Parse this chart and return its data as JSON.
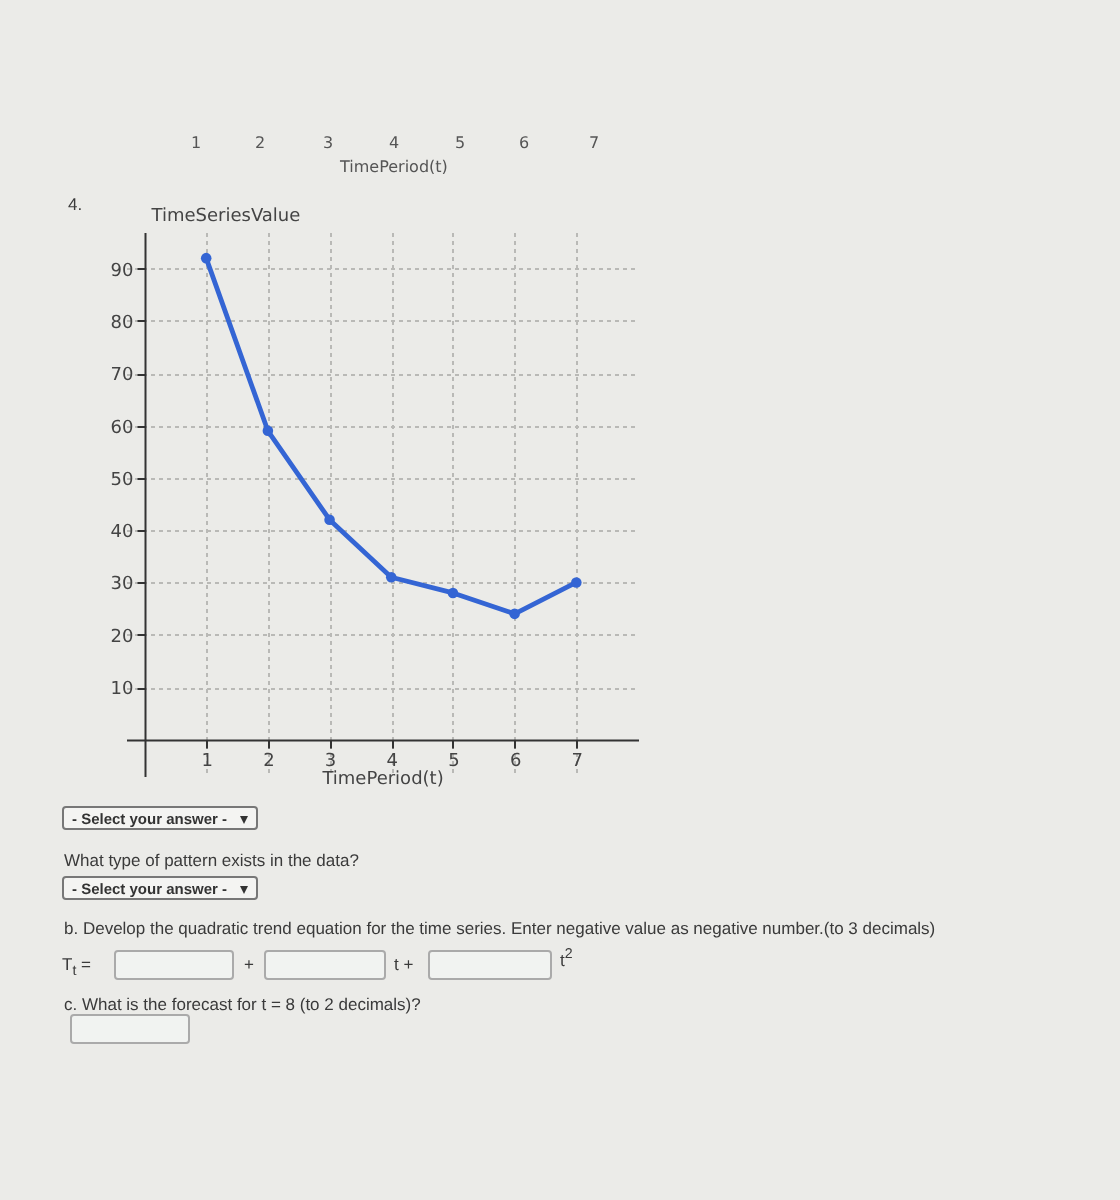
{
  "chart_data": {
    "type": "line",
    "x": [
      1,
      2,
      3,
      4,
      5,
      6,
      7
    ],
    "values": [
      92,
      59,
      42,
      31,
      28,
      24,
      30
    ],
    "color": "#3465d4",
    "marker": "circle",
    "line_style": "solid",
    "xlim": [
      -0.3,
      8
    ],
    "xticks": [
      1,
      2,
      3,
      4,
      5,
      6,
      7
    ],
    "ylim": [
      -7,
      97
    ],
    "yticks": [
      10,
      20,
      30,
      40,
      50,
      60,
      70,
      80,
      90
    ],
    "grid": true,
    "xlabel": "TimePeriod(t)",
    "ylabel": "TimeSeriesValue",
    "annotations": [
      "1",
      "2",
      "3",
      "4",
      "5",
      "6",
      "7",
      "TimePeriod(t)",
      "4.",
      "- Select your answer -",
      "What type of pattern exists in the data?",
      "- Select your answer -",
      "b. Develop the quadratic trend equation for the time series. Enter negative value as negative number.(to 3 decimals)",
      "T$_{t}$ =",
      "+",
      "t +",
      "t$^{2}$",
      "c. What is the forecast for t = 8 (to 2 decimals)?"
    ]
  }
}
